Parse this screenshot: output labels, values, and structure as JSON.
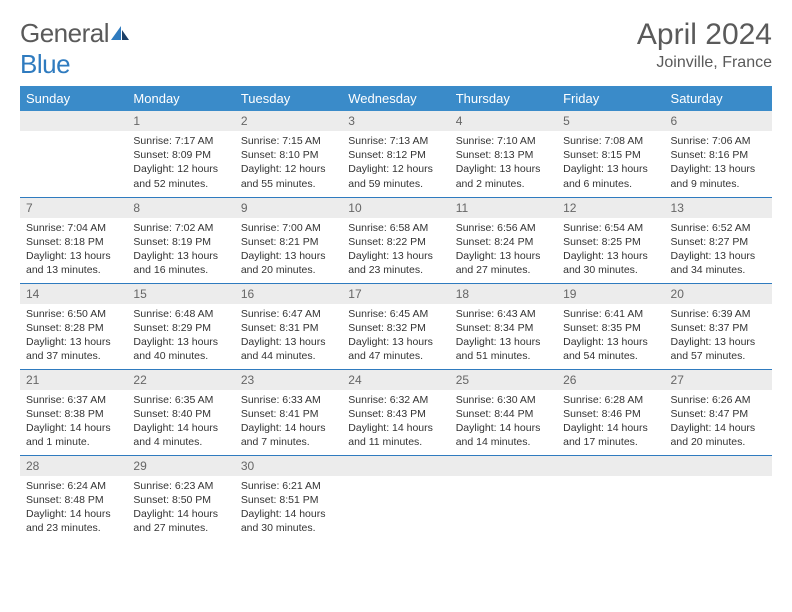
{
  "logo": {
    "text1": "General",
    "text2": "Blue"
  },
  "title": "April 2024",
  "location": "Joinville, France",
  "colors": {
    "header_bg": "#3a8bc9",
    "header_text": "#ffffff",
    "border": "#2f7bbf",
    "dayhead_bg": "#ececec",
    "dayhead_text": "#666666",
    "body_text": "#333333",
    "title_text": "#5a5a5a",
    "logo_gray": "#5a5a5a",
    "logo_blue": "#2f7bbf",
    "page_bg": "#ffffff"
  },
  "weekdays": [
    "Sunday",
    "Monday",
    "Tuesday",
    "Wednesday",
    "Thursday",
    "Friday",
    "Saturday"
  ],
  "weeks": [
    [
      null,
      {
        "n": "1",
        "sunrise": "Sunrise: 7:17 AM",
        "sunset": "Sunset: 8:09 PM",
        "daylight": "Daylight: 12 hours and 52 minutes."
      },
      {
        "n": "2",
        "sunrise": "Sunrise: 7:15 AM",
        "sunset": "Sunset: 8:10 PM",
        "daylight": "Daylight: 12 hours and 55 minutes."
      },
      {
        "n": "3",
        "sunrise": "Sunrise: 7:13 AM",
        "sunset": "Sunset: 8:12 PM",
        "daylight": "Daylight: 12 hours and 59 minutes."
      },
      {
        "n": "4",
        "sunrise": "Sunrise: 7:10 AM",
        "sunset": "Sunset: 8:13 PM",
        "daylight": "Daylight: 13 hours and 2 minutes."
      },
      {
        "n": "5",
        "sunrise": "Sunrise: 7:08 AM",
        "sunset": "Sunset: 8:15 PM",
        "daylight": "Daylight: 13 hours and 6 minutes."
      },
      {
        "n": "6",
        "sunrise": "Sunrise: 7:06 AM",
        "sunset": "Sunset: 8:16 PM",
        "daylight": "Daylight: 13 hours and 9 minutes."
      }
    ],
    [
      {
        "n": "7",
        "sunrise": "Sunrise: 7:04 AM",
        "sunset": "Sunset: 8:18 PM",
        "daylight": "Daylight: 13 hours and 13 minutes."
      },
      {
        "n": "8",
        "sunrise": "Sunrise: 7:02 AM",
        "sunset": "Sunset: 8:19 PM",
        "daylight": "Daylight: 13 hours and 16 minutes."
      },
      {
        "n": "9",
        "sunrise": "Sunrise: 7:00 AM",
        "sunset": "Sunset: 8:21 PM",
        "daylight": "Daylight: 13 hours and 20 minutes."
      },
      {
        "n": "10",
        "sunrise": "Sunrise: 6:58 AM",
        "sunset": "Sunset: 8:22 PM",
        "daylight": "Daylight: 13 hours and 23 minutes."
      },
      {
        "n": "11",
        "sunrise": "Sunrise: 6:56 AM",
        "sunset": "Sunset: 8:24 PM",
        "daylight": "Daylight: 13 hours and 27 minutes."
      },
      {
        "n": "12",
        "sunrise": "Sunrise: 6:54 AM",
        "sunset": "Sunset: 8:25 PM",
        "daylight": "Daylight: 13 hours and 30 minutes."
      },
      {
        "n": "13",
        "sunrise": "Sunrise: 6:52 AM",
        "sunset": "Sunset: 8:27 PM",
        "daylight": "Daylight: 13 hours and 34 minutes."
      }
    ],
    [
      {
        "n": "14",
        "sunrise": "Sunrise: 6:50 AM",
        "sunset": "Sunset: 8:28 PM",
        "daylight": "Daylight: 13 hours and 37 minutes."
      },
      {
        "n": "15",
        "sunrise": "Sunrise: 6:48 AM",
        "sunset": "Sunset: 8:29 PM",
        "daylight": "Daylight: 13 hours and 40 minutes."
      },
      {
        "n": "16",
        "sunrise": "Sunrise: 6:47 AM",
        "sunset": "Sunset: 8:31 PM",
        "daylight": "Daylight: 13 hours and 44 minutes."
      },
      {
        "n": "17",
        "sunrise": "Sunrise: 6:45 AM",
        "sunset": "Sunset: 8:32 PM",
        "daylight": "Daylight: 13 hours and 47 minutes."
      },
      {
        "n": "18",
        "sunrise": "Sunrise: 6:43 AM",
        "sunset": "Sunset: 8:34 PM",
        "daylight": "Daylight: 13 hours and 51 minutes."
      },
      {
        "n": "19",
        "sunrise": "Sunrise: 6:41 AM",
        "sunset": "Sunset: 8:35 PM",
        "daylight": "Daylight: 13 hours and 54 minutes."
      },
      {
        "n": "20",
        "sunrise": "Sunrise: 6:39 AM",
        "sunset": "Sunset: 8:37 PM",
        "daylight": "Daylight: 13 hours and 57 minutes."
      }
    ],
    [
      {
        "n": "21",
        "sunrise": "Sunrise: 6:37 AM",
        "sunset": "Sunset: 8:38 PM",
        "daylight": "Daylight: 14 hours and 1 minute."
      },
      {
        "n": "22",
        "sunrise": "Sunrise: 6:35 AM",
        "sunset": "Sunset: 8:40 PM",
        "daylight": "Daylight: 14 hours and 4 minutes."
      },
      {
        "n": "23",
        "sunrise": "Sunrise: 6:33 AM",
        "sunset": "Sunset: 8:41 PM",
        "daylight": "Daylight: 14 hours and 7 minutes."
      },
      {
        "n": "24",
        "sunrise": "Sunrise: 6:32 AM",
        "sunset": "Sunset: 8:43 PM",
        "daylight": "Daylight: 14 hours and 11 minutes."
      },
      {
        "n": "25",
        "sunrise": "Sunrise: 6:30 AM",
        "sunset": "Sunset: 8:44 PM",
        "daylight": "Daylight: 14 hours and 14 minutes."
      },
      {
        "n": "26",
        "sunrise": "Sunrise: 6:28 AM",
        "sunset": "Sunset: 8:46 PM",
        "daylight": "Daylight: 14 hours and 17 minutes."
      },
      {
        "n": "27",
        "sunrise": "Sunrise: 6:26 AM",
        "sunset": "Sunset: 8:47 PM",
        "daylight": "Daylight: 14 hours and 20 minutes."
      }
    ],
    [
      {
        "n": "28",
        "sunrise": "Sunrise: 6:24 AM",
        "sunset": "Sunset: 8:48 PM",
        "daylight": "Daylight: 14 hours and 23 minutes."
      },
      {
        "n": "29",
        "sunrise": "Sunrise: 6:23 AM",
        "sunset": "Sunset: 8:50 PM",
        "daylight": "Daylight: 14 hours and 27 minutes."
      },
      {
        "n": "30",
        "sunrise": "Sunrise: 6:21 AM",
        "sunset": "Sunset: 8:51 PM",
        "daylight": "Daylight: 14 hours and 30 minutes."
      },
      null,
      null,
      null,
      null
    ]
  ]
}
